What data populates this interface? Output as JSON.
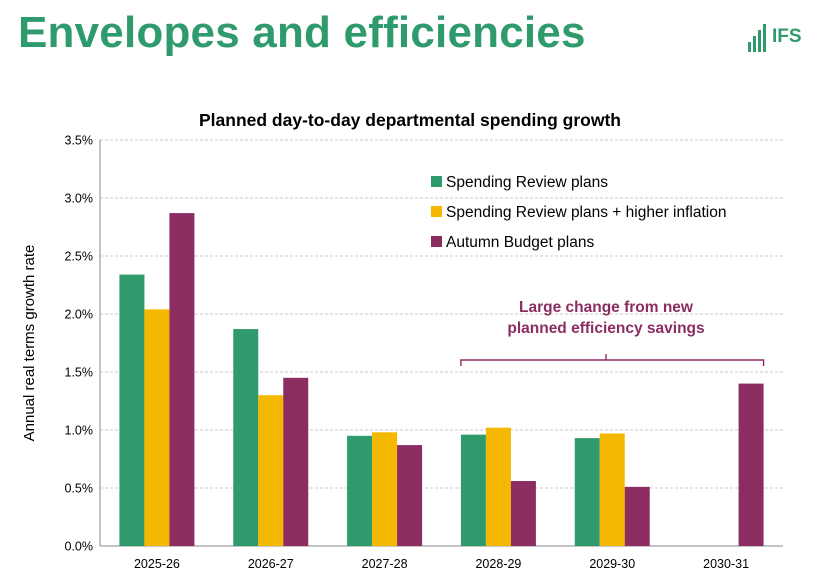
{
  "header": {
    "title": "Envelopes and efficiencies",
    "logo_text": "IFS"
  },
  "colors": {
    "title": "#2f9a6c",
    "annotation": "#8c2d62"
  },
  "chart_data": {
    "type": "bar",
    "title": "Planned day-to-day departmental spending growth",
    "xlabel": "",
    "ylabel": "Annual real terms growth rate",
    "ylim": [
      0,
      3.5
    ],
    "yticks": [
      "0.0%",
      "0.5%",
      "1.0%",
      "1.5%",
      "2.0%",
      "2.5%",
      "3.0%",
      "3.5%"
    ],
    "grid": true,
    "legend_position": "top-right",
    "categories": [
      "2025-26",
      "2026-27",
      "2027-28",
      "2028-29",
      "2029-30",
      "2030-31"
    ],
    "series": [
      {
        "name": "Spending Review plans",
        "color": "#2f9a6c",
        "values": [
          2.34,
          1.87,
          0.95,
          0.96,
          0.93,
          null
        ]
      },
      {
        "name": "Spending Review plans + higher inflation",
        "color": "#f5b800",
        "values": [
          2.04,
          1.3,
          0.98,
          1.02,
          0.97,
          null
        ]
      },
      {
        "name": "Autumn Budget plans",
        "color": "#8c2d62",
        "values": [
          2.87,
          1.45,
          0.87,
          0.56,
          0.51,
          1.4
        ]
      }
    ],
    "annotation": {
      "lines": [
        "Large change from new",
        "planned efficiency savings"
      ],
      "spans_categories": [
        "2028-29",
        "2030-31"
      ]
    }
  }
}
